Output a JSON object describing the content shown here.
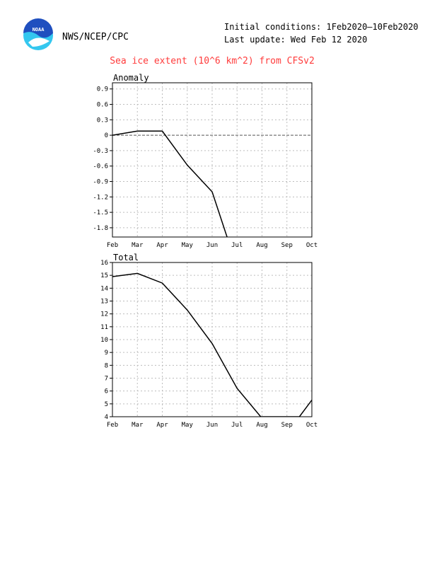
{
  "header": {
    "agency": "NWS/NCEP/CPC",
    "logo_text": "NOAA",
    "initial_conditions": "Initial conditions: 1Feb2020–10Feb2020",
    "last_update": "Last update: Wed Feb 12 2020"
  },
  "title": "Sea ice extent (10^6 km^2) from CFSv2",
  "colors": {
    "title": "#ff3b3b",
    "line": "#000000",
    "grid": "#bdbdbd",
    "logo_blue": "#1f4fbf",
    "logo_cyan": "#34c7ef"
  },
  "chart_data": [
    {
      "type": "line",
      "panel_label": "Anomaly",
      "x_ticks": [
        "Feb",
        "Mar",
        "Apr",
        "May",
        "Jun",
        "Jul",
        "Aug",
        "Sep",
        "Oct"
      ],
      "y_ticks": [
        "0.9",
        "0.6",
        "0.3",
        "0",
        "-0.3",
        "-0.6",
        "-0.9",
        "-1.2",
        "-1.5",
        "-1.8"
      ],
      "ylim": [
        -1.98,
        1.02
      ],
      "grid": true,
      "zero_line": true,
      "series": [
        {
          "x": [
            0,
            1,
            2,
            3,
            4,
            4.6
          ],
          "y": [
            0.0,
            0.08,
            0.08,
            -0.58,
            -1.1,
            -1.98
          ]
        }
      ]
    },
    {
      "type": "line",
      "panel_label": "Total",
      "x_ticks": [
        "Feb",
        "Mar",
        "Apr",
        "May",
        "Jun",
        "Jul",
        "Aug",
        "Sep",
        "Oct"
      ],
      "y_ticks": [
        "16",
        "15",
        "14",
        "13",
        "12",
        "11",
        "10",
        "9",
        "8",
        "7",
        "6",
        "5",
        "4"
      ],
      "ylim": [
        4,
        16
      ],
      "grid": true,
      "zero_line": false,
      "series": [
        {
          "x": [
            0,
            1,
            2,
            3,
            4,
            5,
            5.95,
            7.5,
            8
          ],
          "y": [
            14.9,
            15.15,
            14.4,
            12.3,
            9.7,
            6.2,
            4.0,
            4.0,
            5.3
          ]
        }
      ]
    }
  ]
}
